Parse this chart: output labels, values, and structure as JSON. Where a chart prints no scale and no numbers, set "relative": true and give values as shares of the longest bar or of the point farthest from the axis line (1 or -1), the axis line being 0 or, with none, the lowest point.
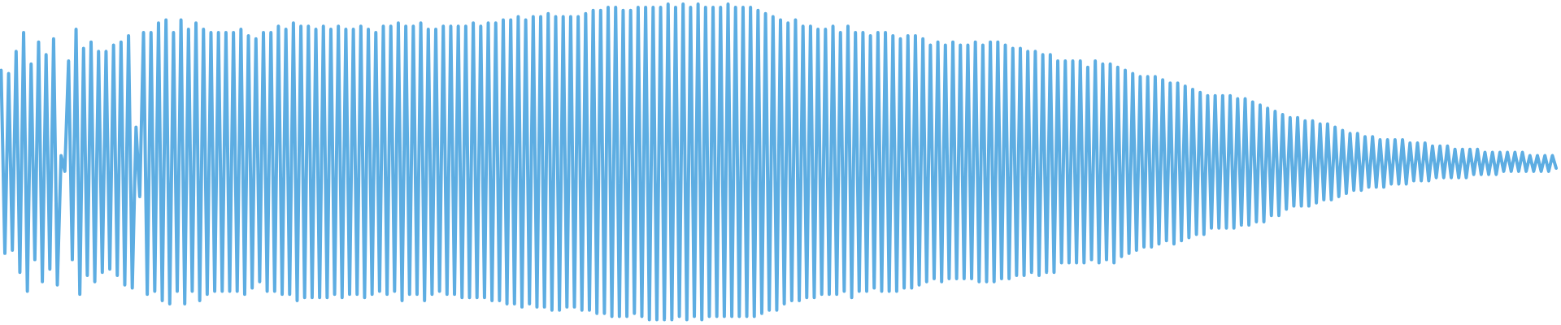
{
  "chart_data": {
    "type": "line",
    "relative": true,
    "color": "#5dade2",
    "categories": [
      null,
      null,
      null,
      null,
      null,
      null,
      null,
      null,
      null,
      null,
      null,
      null,
      null,
      null,
      null,
      null,
      null,
      null,
      null,
      null,
      null,
      null,
      null,
      null,
      null,
      null,
      null,
      null,
      null,
      null,
      null,
      null,
      null,
      null,
      null,
      null,
      null,
      null,
      null,
      null,
      null,
      null,
      null,
      null,
      null,
      null,
      null,
      null,
      null,
      null,
      null,
      null,
      null,
      null,
      null,
      null,
      null,
      null,
      null,
      null,
      null,
      null,
      null,
      null,
      null,
      null,
      null,
      null,
      null,
      null,
      null,
      null,
      null,
      null,
      null,
      null,
      null,
      null,
      null,
      null,
      null,
      null,
      null,
      null,
      null,
      null,
      null,
      null,
      null,
      null,
      null,
      null,
      null,
      null,
      null,
      null,
      null,
      null,
      null,
      null,
      null,
      null,
      null,
      null,
      null,
      null,
      null,
      null,
      null,
      null,
      null,
      null,
      null,
      null,
      null,
      null,
      null,
      null,
      null,
      null,
      null,
      null,
      null,
      null,
      null,
      null,
      null,
      null,
      null,
      null,
      null,
      null,
      null,
      null,
      null,
      null,
      null,
      null,
      null,
      null,
      null,
      null,
      null,
      null,
      null,
      null,
      null,
      null,
      null,
      null,
      null,
      null,
      null,
      null,
      null,
      null,
      null,
      null,
      null,
      null,
      null,
      null,
      null,
      null,
      null,
      null,
      null,
      null,
      null,
      null,
      null,
      null,
      null,
      null,
      null,
      null,
      null,
      null,
      null,
      null,
      null,
      null,
      null,
      null,
      null,
      null,
      null,
      null,
      null,
      null,
      null,
      null,
      null,
      null,
      null,
      null,
      null,
      null,
      null,
      null,
      null,
      null,
      null,
      null,
      null,
      null,
      null,
      null,
      null,
      null,
      null,
      null,
      null,
      null,
      null,
      null,
      null,
      null,
      null,
      null,
      null,
      null,
      null,
      null,
      null,
      null,
      null,
      null,
      null,
      null,
      null,
      null,
      null,
      null,
      null,
      null,
      null,
      null,
      null,
      null,
      null,
      null,
      null,
      null,
      null,
      null,
      null,
      null,
      null,
      null,
      null,
      null,
      null,
      null,
      null,
      null,
      null,
      null,
      null,
      null,
      null,
      null,
      null,
      null,
      null,
      null,
      null,
      null,
      null,
      null,
      null,
      null,
      null,
      null,
      null,
      null,
      null,
      null,
      null,
      null,
      null,
      null,
      null,
      null,
      null,
      null,
      null,
      null,
      null,
      null,
      null,
      null,
      null,
      null,
      null,
      null,
      null,
      null,
      null,
      null,
      null,
      null,
      null,
      null,
      null,
      null,
      null,
      null,
      null,
      null,
      null,
      null,
      null,
      null,
      null,
      null,
      null,
      null,
      null,
      null,
      null,
      null,
      null,
      null,
      null,
      null,
      null,
      null,
      null,
      null,
      null,
      null,
      null,
      null,
      null,
      null,
      null,
      null,
      null,
      null,
      null,
      null,
      null,
      null,
      null,
      null,
      null,
      null,
      null,
      null,
      null,
      null,
      null,
      null,
      null,
      null,
      null,
      null,
      null,
      null,
      null,
      null,
      null,
      null,
      null,
      null,
      null,
      null,
      null,
      null,
      null,
      null,
      null,
      null,
      null,
      null,
      null,
      null,
      null,
      null,
      null,
      null,
      null,
      null,
      null,
      null,
      null,
      null,
      null,
      null,
      null,
      null,
      null,
      null,
      null,
      null,
      null,
      null,
      null,
      null,
      null,
      null,
      null,
      null,
      null,
      null,
      null,
      null,
      null,
      null,
      null,
      null,
      null,
      null,
      null,
      null
    ],
    "values": [
      0.79,
      0.21,
      0.78,
      0.22,
      0.85,
      0.15,
      0.91,
      0.09,
      0.81,
      0.19,
      0.88,
      0.12,
      0.84,
      0.16,
      0.89,
      0.11,
      0.52,
      0.47,
      0.82,
      0.19,
      0.92,
      0.08,
      0.86,
      0.14,
      0.88,
      0.12,
      0.85,
      0.15,
      0.85,
      0.16,
      0.87,
      0.14,
      0.88,
      0.11,
      0.9,
      0.1,
      0.61,
      0.39,
      0.91,
      0.08,
      0.91,
      0.09,
      0.94,
      0.06,
      0.95,
      0.05,
      0.91,
      0.09,
      0.95,
      0.05,
      0.92,
      0.09,
      0.94,
      0.06,
      0.92,
      0.08,
      0.91,
      0.09,
      0.91,
      0.09,
      0.91,
      0.09,
      0.91,
      0.09,
      0.92,
      0.08,
      0.9,
      0.1,
      0.89,
      0.12,
      0.91,
      0.09,
      0.91,
      0.09,
      0.93,
      0.08,
      0.92,
      0.08,
      0.94,
      0.06,
      0.93,
      0.07,
      0.93,
      0.07,
      0.92,
      0.07,
      0.93,
      0.07,
      0.92,
      0.08,
      0.93,
      0.07,
      0.92,
      0.08,
      0.92,
      0.08,
      0.93,
      0.07,
      0.92,
      0.08,
      0.91,
      0.09,
      0.93,
      0.08,
      0.93,
      0.09,
      0.94,
      0.06,
      0.93,
      0.08,
      0.93,
      0.08,
      0.94,
      0.06,
      0.92,
      0.08,
      0.92,
      0.09,
      0.93,
      0.08,
      0.93,
      0.08,
      0.93,
      0.07,
      0.93,
      0.07,
      0.94,
      0.07,
      0.93,
      0.07,
      0.94,
      0.06,
      0.94,
      0.06,
      0.95,
      0.05,
      0.95,
      0.05,
      0.96,
      0.04,
      0.95,
      0.05,
      0.96,
      0.04,
      0.96,
      0.04,
      0.97,
      0.03,
      0.96,
      0.03,
      0.96,
      0.04,
      0.96,
      0.04,
      0.96,
      0.03,
      0.97,
      0.03,
      0.98,
      0.02,
      0.98,
      0.02,
      0.99,
      0.01,
      0.99,
      0.01,
      0.98,
      0.01,
      0.98,
      0.02,
      0.99,
      0.01,
      0.99,
      0,
      0.99,
      0,
      0.99,
      0,
      1,
      0,
      0.99,
      0.01,
      1,
      0,
      0.99,
      0.01,
      1,
      0,
      0.99,
      0.01,
      0.99,
      0.01,
      0.99,
      0.01,
      1,
      0.01,
      0.99,
      0.01,
      0.99,
      0.01,
      0.99,
      0.01,
      0.98,
      0.02,
      0.97,
      0.03,
      0.96,
      0.03,
      0.95,
      0.05,
      0.94,
      0.06,
      0.95,
      0.06,
      0.93,
      0.07,
      0.93,
      0.07,
      0.92,
      0.08,
      0.92,
      0.08,
      0.93,
      0.08,
      0.91,
      0.09,
      0.93,
      0.07,
      0.91,
      0.09,
      0.91,
      0.09,
      0.9,
      0.1,
      0.91,
      0.09,
      0.91,
      0.09,
      0.9,
      0.09,
      0.89,
      0.1,
      0.9,
      0.1,
      0.9,
      0.11,
      0.89,
      0.12,
      0.87,
      0.13,
      0.88,
      0.12,
      0.87,
      0.13,
      0.88,
      0.13,
      0.87,
      0.13,
      0.87,
      0.13,
      0.88,
      0.12,
      0.87,
      0.12,
      0.88,
      0.12,
      0.88,
      0.13,
      0.87,
      0.13,
      0.86,
      0.14,
      0.86,
      0.14,
      0.85,
      0.15,
      0.85,
      0.14,
      0.84,
      0.15,
      0.84,
      0.15,
      0.82,
      0.18,
      0.82,
      0.18,
      0.82,
      0.18,
      0.82,
      0.18,
      0.8,
      0.19,
      0.82,
      0.18,
      0.81,
      0.19,
      0.81,
      0.18,
      0.8,
      0.2,
      0.79,
      0.21,
      0.78,
      0.22,
      0.77,
      0.23,
      0.77,
      0.23,
      0.77,
      0.24,
      0.76,
      0.25,
      0.75,
      0.24,
      0.75,
      0.25,
      0.74,
      0.26,
      0.73,
      0.27,
      0.72,
      0.27,
      0.71,
      0.29,
      0.71,
      0.29,
      0.71,
      0.29,
      0.71,
      0.29,
      0.7,
      0.3,
      0.7,
      0.3,
      0.69,
      0.31,
      0.68,
      0.31,
      0.67,
      0.33,
      0.66,
      0.33,
      0.65,
      0.35,
      0.64,
      0.36,
      0.64,
      0.36,
      0.63,
      0.36,
      0.63,
      0.37,
      0.62,
      0.38,
      0.62,
      0.38,
      0.61,
      0.39,
      0.6,
      0.4,
      0.59,
      0.41,
      0.59,
      0.41,
      0.58,
      0.42,
      0.58,
      0.42,
      0.57,
      0.42,
      0.57,
      0.43,
      0.57,
      0.43,
      0.57,
      0.43,
      0.56,
      0.44,
      0.56,
      0.44,
      0.56,
      0.44,
      0.55,
      0.45,
      0.55,
      0.45,
      0.55,
      0.45,
      0.54,
      0.45,
      0.54,
      0.45,
      0.54,
      0.46,
      0.54,
      0.46,
      0.53,
      0.46,
      0.53,
      0.46,
      0.53,
      0.47,
      0.53,
      0.47,
      0.53,
      0.47,
      0.53,
      0.47,
      0.52,
      0.47,
      0.52,
      0.47,
      0.52,
      0.47,
      0.52,
      0.48
    ]
  }
}
